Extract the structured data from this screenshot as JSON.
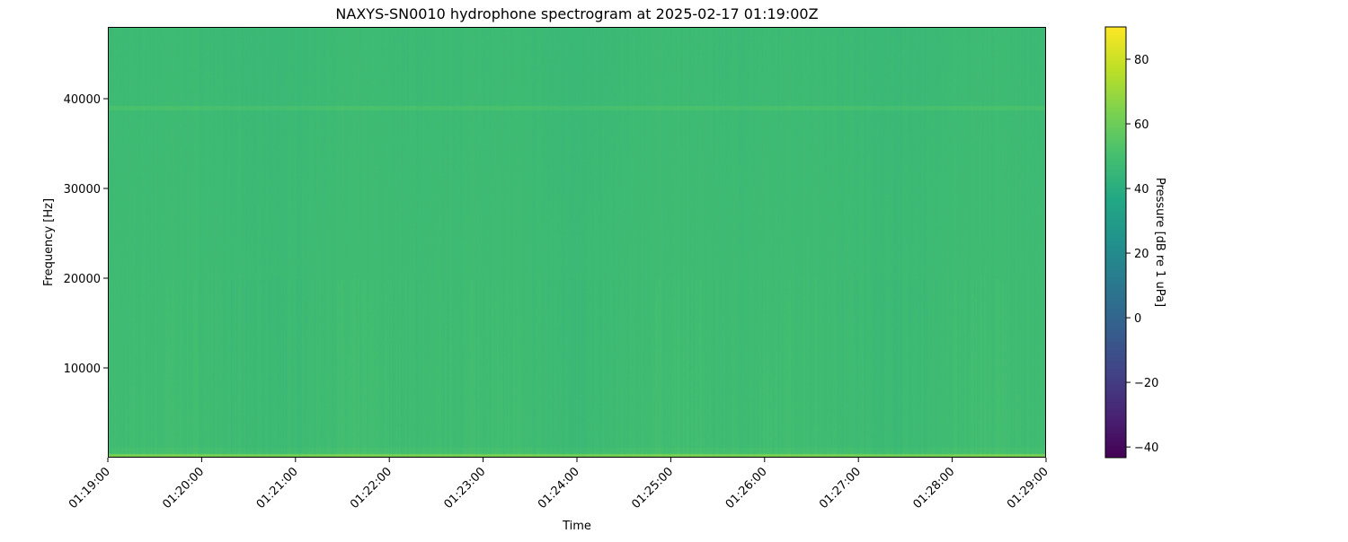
{
  "chart_data": {
    "type": "heatmap",
    "title": "NAXYS-SN0010 hydrophone spectrogram at 2025-02-17 01:19:00Z",
    "xlabel": "Time",
    "ylabel": "Frequency [Hz]",
    "x_ticks": [
      "01:19:00",
      "01:20:00",
      "01:21:00",
      "01:22:00",
      "01:23:00",
      "01:24:00",
      "01:25:00",
      "01:26:00",
      "01:27:00",
      "01:28:00",
      "01:29:00"
    ],
    "xlim": [
      "01:19:00",
      "01:29:00"
    ],
    "y_ticks": [
      10000,
      20000,
      30000,
      40000
    ],
    "ylim": [
      0,
      48000
    ],
    "colorbar": {
      "label": "Pressure [dB re 1 uPa]",
      "colormap": "viridis",
      "range": [
        -43.3,
        90
      ],
      "ticks": [
        -40,
        -20,
        0,
        20,
        40,
        60,
        80
      ]
    },
    "features": {
      "background_level_db": 47,
      "tone": {
        "frequency_hz": 39000,
        "level_db": 51
      },
      "low_frequency_band": {
        "max_frequency_hz": 500,
        "level_db": 62
      }
    },
    "grid": false
  }
}
